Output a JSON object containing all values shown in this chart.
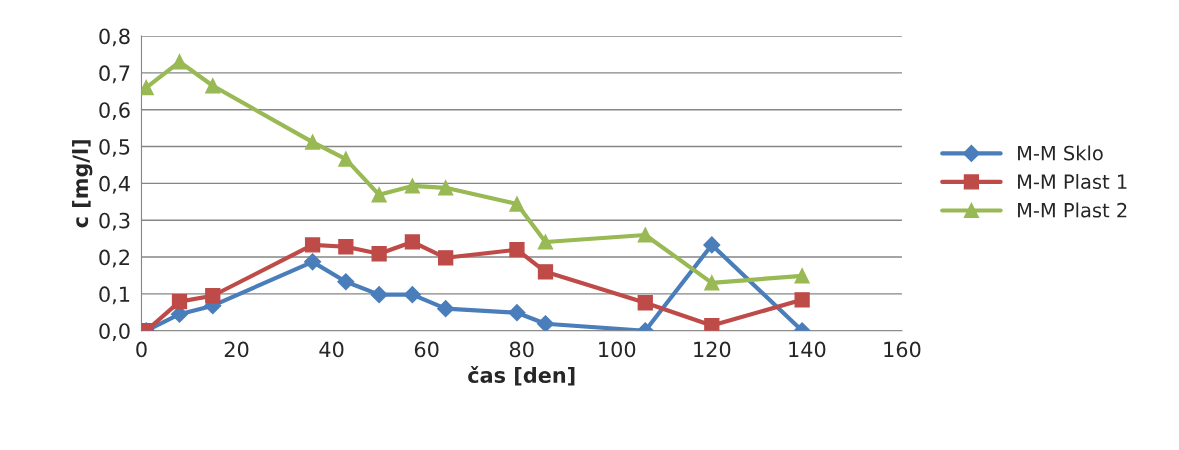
{
  "chart_data": {
    "type": "line",
    "xlabel": "čas [den]",
    "ylabel": "c [mg/l]",
    "xlim": [
      0,
      160
    ],
    "xticks": [
      0,
      20,
      40,
      60,
      80,
      100,
      120,
      140,
      160
    ],
    "ylim": [
      0,
      0.8
    ],
    "yticks": [
      {
        "value": 0,
        "label": "0,0"
      },
      {
        "value": 0.1,
        "label": "0,1"
      },
      {
        "value": 0.2,
        "label": "0,2"
      },
      {
        "value": 0.3,
        "label": "0,3"
      },
      {
        "value": 0.4,
        "label": "0,4"
      },
      {
        "value": 0.5,
        "label": "0,5"
      },
      {
        "value": 0.6,
        "label": "0,6"
      },
      {
        "value": 0.7,
        "label": "0,7"
      },
      {
        "value": 0.8,
        "label": "0,8"
      }
    ],
    "grid": "y",
    "legend": "right",
    "series": [
      {
        "name": "M-M Sklo",
        "color": "#4a7ebb",
        "marker": "diamond",
        "x": [
          1,
          8,
          15,
          36,
          43,
          50,
          57,
          64,
          79,
          85,
          106,
          120,
          139
        ],
        "values": [
          0,
          0.045,
          0.068,
          0.187,
          0.133,
          0.098,
          0.098,
          0.06,
          0.049,
          0.019,
          0,
          0.233,
          0
        ]
      },
      {
        "name": "M-M Plast 1",
        "color": "#be4b48",
        "marker": "square",
        "x": [
          1,
          8,
          15,
          36,
          43,
          50,
          57,
          64,
          79,
          85,
          106,
          120,
          139
        ],
        "values": [
          0,
          0.079,
          0.095,
          0.233,
          0.228,
          0.209,
          0.241,
          0.198,
          0.22,
          0.16,
          0.076,
          0.014,
          0.084
        ]
      },
      {
        "name": "M-M Plast 2",
        "color": "#98b954",
        "marker": "triangle",
        "x": [
          1,
          8,
          15,
          36,
          43,
          50,
          57,
          64,
          79,
          85,
          106,
          120,
          139
        ],
        "values": [
          0.66,
          0.73,
          0.665,
          0.512,
          0.466,
          0.369,
          0.393,
          0.388,
          0.344,
          0.241,
          0.26,
          0.13,
          0.149
        ]
      }
    ]
  }
}
